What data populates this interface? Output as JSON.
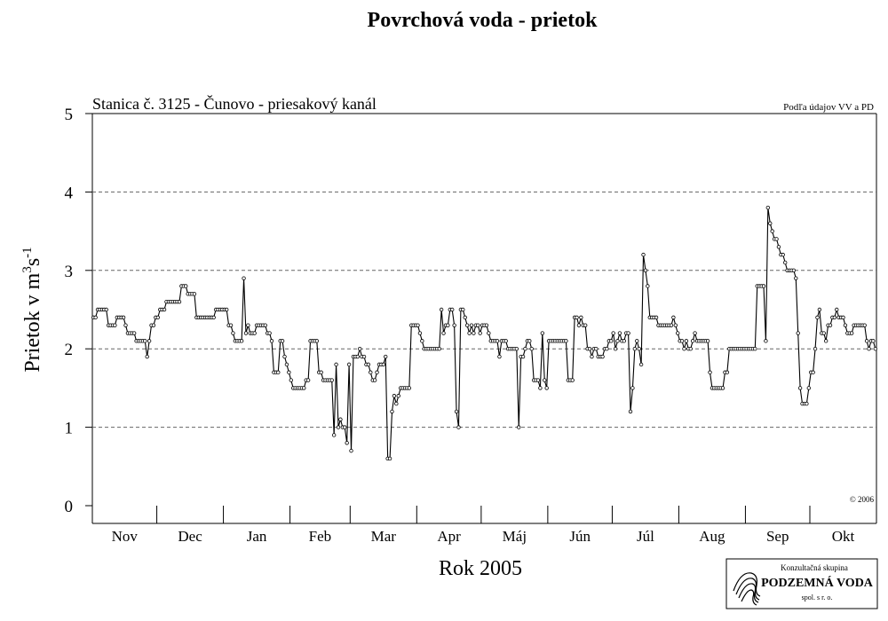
{
  "chart_data": {
    "type": "line",
    "title": "Povrchová voda - prietok",
    "subtitle": "Stanica č. 3125 - Čunovo - priesakový kanál",
    "source_note": "Podľa údajov VV a PD",
    "copyright": "© 2006",
    "y_label": {
      "text": "Prietok v m",
      "sup1": "3",
      "mid": "s",
      "sup2": "-1"
    },
    "x_label": "Rok 2005",
    "color": "#000000",
    "ylim": [
      0,
      5
    ],
    "yticks": [
      0,
      1,
      2,
      3,
      4,
      5
    ],
    "grid": true,
    "months": [
      {
        "label": "Nov",
        "values": [
          2.4,
          2.4,
          2.5,
          2.5,
          2.5,
          2.5,
          2.5,
          2.3,
          2.3,
          2.3,
          2.3,
          2.4,
          2.4,
          2.4,
          2.4,
          2.3,
          2.2,
          2.2,
          2.2,
          2.2,
          2.1,
          2.1,
          2.1,
          2.1,
          2.1,
          1.9,
          2.1,
          2.3,
          2.3,
          2.4
        ]
      },
      {
        "label": "Dec",
        "values": [
          2.4,
          2.5,
          2.5,
          2.5,
          2.6,
          2.6,
          2.6,
          2.6,
          2.6,
          2.6,
          2.6,
          2.8,
          2.8,
          2.8,
          2.7,
          2.7,
          2.7,
          2.7,
          2.4,
          2.4,
          2.4,
          2.4,
          2.4,
          2.4,
          2.4,
          2.4,
          2.4,
          2.5,
          2.5,
          2.5,
          2.5
        ]
      },
      {
        "label": "Jan",
        "values": [
          2.5,
          2.5,
          2.3,
          2.3,
          2.2,
          2.1,
          2.1,
          2.1,
          2.1,
          2.9,
          2.2,
          2.3,
          2.2,
          2.2,
          2.2,
          2.3,
          2.3,
          2.3,
          2.3,
          2.3,
          2.2,
          2.2,
          2.1,
          1.7,
          1.7,
          1.7,
          2.1,
          2.1,
          1.9,
          1.8,
          1.7
        ]
      },
      {
        "label": "Feb",
        "values": [
          1.6,
          1.5,
          1.5,
          1.5,
          1.5,
          1.5,
          1.5,
          1.6,
          1.6,
          2.1,
          2.1,
          2.1,
          2.1,
          1.7,
          1.7,
          1.6,
          1.6,
          1.6,
          1.6,
          1.6,
          0.9,
          1.8,
          1.0,
          1.1,
          1.0,
          1.0,
          0.8,
          1.8
        ]
      },
      {
        "label": "Mar",
        "values": [
          0.7,
          1.9,
          1.9,
          1.9,
          2.0,
          1.9,
          1.9,
          1.8,
          1.8,
          1.7,
          1.6,
          1.6,
          1.7,
          1.8,
          1.8,
          1.8,
          1.9,
          0.6,
          0.6,
          1.2,
          1.4,
          1.3,
          1.4,
          1.5,
          1.5,
          1.5,
          1.5,
          1.5,
          2.3,
          2.3,
          2.3
        ]
      },
      {
        "label": "Apr",
        "values": [
          2.3,
          2.2,
          2.1,
          2.0,
          2.0,
          2.0,
          2.0,
          2.0,
          2.0,
          2.0,
          2.0,
          2.5,
          2.2,
          2.3,
          2.3,
          2.5,
          2.5,
          2.3,
          1.2,
          1.0,
          2.5,
          2.5,
          2.4,
          2.3,
          2.2,
          2.3,
          2.2,
          2.3,
          2.3,
          2.2
        ]
      },
      {
        "label": "Máj",
        "values": [
          2.3,
          2.3,
          2.3,
          2.2,
          2.1,
          2.1,
          2.1,
          2.1,
          1.9,
          2.1,
          2.1,
          2.1,
          2.0,
          2.0,
          2.0,
          2.0,
          2.0,
          1.0,
          1.9,
          1.9,
          2.0,
          2.1,
          2.1,
          2.0,
          1.6,
          1.6,
          1.6,
          1.5,
          2.2,
          1.6,
          1.5
        ]
      },
      {
        "label": "Jún",
        "values": [
          2.1,
          2.1,
          2.1,
          2.1,
          2.1,
          2.1,
          2.1,
          2.1,
          2.1,
          1.6,
          1.6,
          1.6,
          2.4,
          2.4,
          2.3,
          2.4,
          2.3,
          2.3,
          2.0,
          2.0,
          1.9,
          2.0,
          2.0,
          1.9,
          1.9,
          1.9,
          2.0,
          2.0,
          2.1,
          2.1
        ]
      },
      {
        "label": "Júl",
        "values": [
          2.2,
          2.0,
          2.1,
          2.2,
          2.1,
          2.1,
          2.2,
          2.2,
          1.2,
          1.5,
          2.0,
          2.1,
          2.0,
          1.8,
          3.2,
          3.0,
          2.8,
          2.4,
          2.4,
          2.4,
          2.4,
          2.3,
          2.3,
          2.3,
          2.3,
          2.3,
          2.3,
          2.3,
          2.4,
          2.3,
          2.2
        ]
      },
      {
        "label": "Aug",
        "values": [
          2.1,
          2.1,
          2.0,
          2.1,
          2.0,
          2.0,
          2.1,
          2.2,
          2.1,
          2.1,
          2.1,
          2.1,
          2.1,
          2.1,
          1.7,
          1.5,
          1.5,
          1.5,
          1.5,
          1.5,
          1.5,
          1.7,
          1.7,
          2.0,
          2.0,
          2.0,
          2.0,
          2.0,
          2.0,
          2.0,
          2.0
        ]
      },
      {
        "label": "Sep",
        "values": [
          2.0,
          2.0,
          2.0,
          2.0,
          2.0,
          2.8,
          2.8,
          2.8,
          2.8,
          2.1,
          3.8,
          3.6,
          3.5,
          3.4,
          3.4,
          3.3,
          3.2,
          3.2,
          3.1,
          3.0,
          3.0,
          3.0,
          3.0,
          2.9,
          2.2,
          1.5,
          1.3,
          1.3,
          1.3,
          1.5
        ]
      },
      {
        "label": "Okt",
        "values": [
          1.7,
          1.7,
          2.0,
          2.4,
          2.5,
          2.2,
          2.2,
          2.1,
          2.3,
          2.3,
          2.4,
          2.4,
          2.5,
          2.4,
          2.4,
          2.4,
          2.3,
          2.2,
          2.2,
          2.2,
          2.3,
          2.3,
          2.3,
          2.3,
          2.3,
          2.3,
          2.1,
          2.0,
          2.1,
          2.1,
          2.0
        ]
      }
    ],
    "logo": {
      "line1": "Konzultačná skupina",
      "line2": "PODZEMNÁ VODA",
      "line3": "spol. s r. o."
    }
  }
}
